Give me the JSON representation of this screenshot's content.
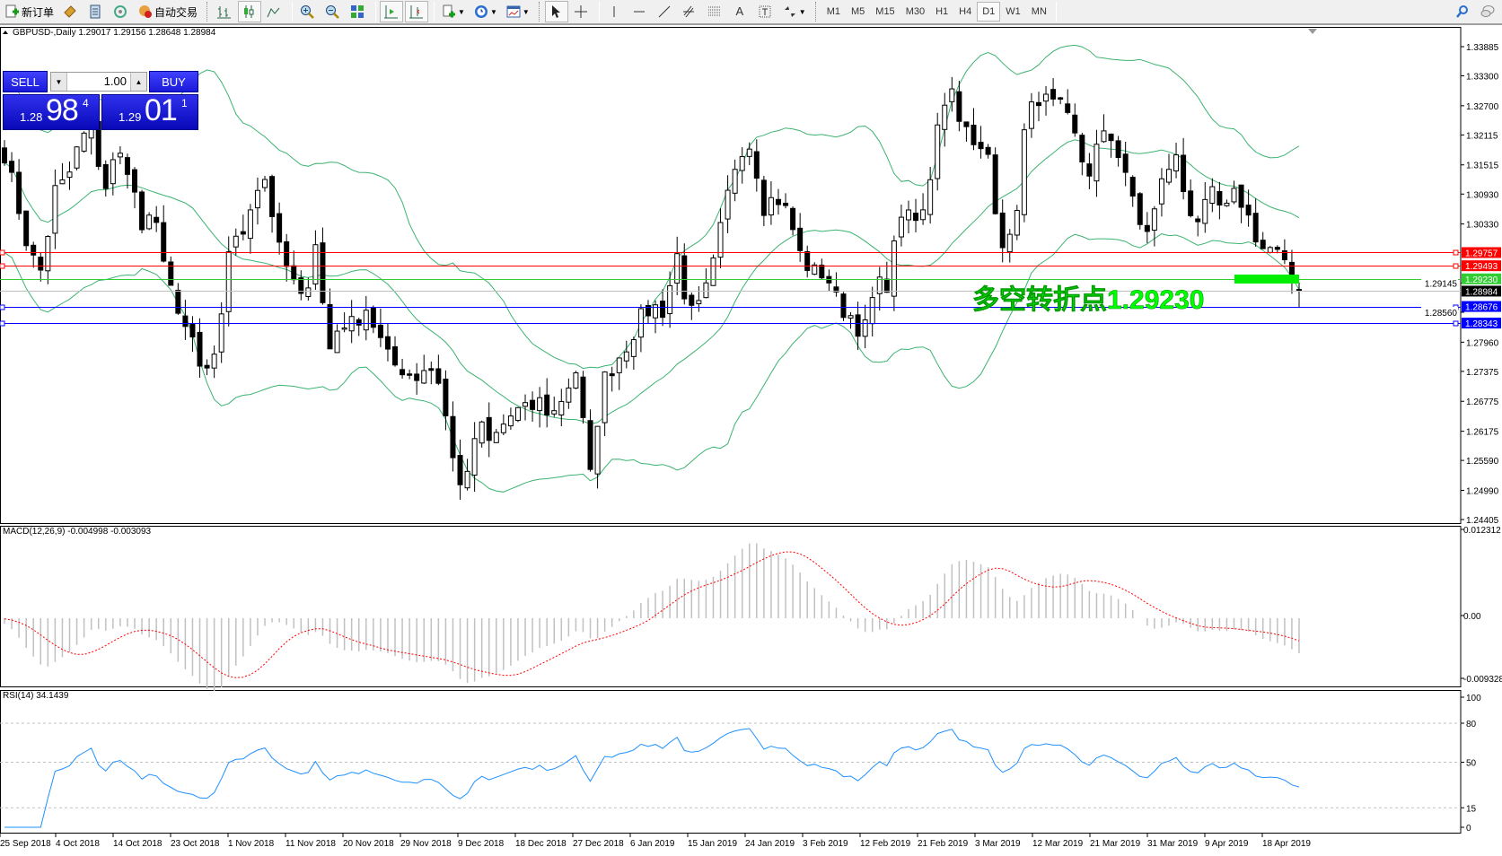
{
  "toolbar": {
    "new_order": "新订单",
    "auto_trading": "自动交易",
    "icons": [
      "new-order-icon",
      "experts-icon",
      "market-watch-icon",
      "signals-icon",
      "auto-trading-icon",
      "bar-chart-icon",
      "candlestick-icon",
      "line-chart-icon",
      "zoom-in-icon",
      "zoom-out-icon",
      "tile-windows-icon",
      "autoscroll-icon",
      "chart-shift-icon",
      "indicators-icon",
      "periods-icon",
      "templates-icon",
      "cursor-icon",
      "crosshair-icon",
      "vertical-line-icon",
      "horizontal-line-icon",
      "trendline-icon",
      "fibonacci-icon",
      "fibo-levels-icon",
      "text-icon",
      "text-label-icon",
      "arrows-icon",
      "search-icon",
      "chat-icon"
    ],
    "timeframes": [
      "M1",
      "M5",
      "M15",
      "M30",
      "H1",
      "H4",
      "D1",
      "W1",
      "MN"
    ],
    "active_timeframe": "D1"
  },
  "chart": {
    "header": "GBPUSD-,Daily  1.29017 1.29156 1.28648 1.28984",
    "symbol": "GBPUSD-",
    "period": "Daily",
    "last_bar": {
      "open": 1.29017,
      "high": 1.29156,
      "low": 1.28648,
      "close": 1.28984
    },
    "one_click": {
      "sell_label": "SELL",
      "buy_label": "BUY",
      "lot": "1.00",
      "bid": {
        "small": "1.28",
        "big": "98",
        "exp": "4"
      },
      "ask": {
        "small": "1.29",
        "big": "01",
        "exp": "1"
      }
    },
    "price_ticks": [
      "1.33885",
      "1.33300",
      "1.32700",
      "1.32115",
      "1.31515",
      "1.30930",
      "1.30330",
      "1.29145",
      "1.28560",
      "1.27960",
      "1.27375",
      "1.26775",
      "1.26175",
      "1.25590",
      "1.24990",
      "1.24405"
    ],
    "levels": [
      {
        "price": "1.29757",
        "color": "#ff0000",
        "tag": true
      },
      {
        "price": "1.29493",
        "color": "#ff0000",
        "tag": true
      },
      {
        "price": "1.29230",
        "color": "#32cd32",
        "tag": false
      },
      {
        "price": "1.28984",
        "color": "#000000",
        "line_color": "#c0c0c0",
        "tag": false
      },
      {
        "price": "1.28676",
        "color": "#0000ff",
        "tag": true
      },
      {
        "price": "1.28343",
        "color": "#0000ff",
        "tag": true
      }
    ],
    "annotation": "多空转折点1.29230",
    "annotation_color": "#00ff00",
    "bull_color": "#ffffff",
    "bear_color": "#000000",
    "band_color": "#3cb371",
    "closes_sampled": [
      1.31755,
      1.30795,
      1.2974,
      1.29356,
      1.30987,
      1.31179,
      1.31947,
      1.32331,
      1.30987,
      1.31755,
      1.31467,
      1.3022,
      1.30412,
      1.29548,
      1.28301,
      1.28109,
      1.27149,
      1.27629,
      1.29836,
      1.30028,
      1.30987,
      1.31275,
      1.29836,
      1.2926,
      1.28684,
      1.30028,
      1.27725,
      1.28397,
      1.28301,
      1.28684,
      1.28109,
      1.27533,
      1.27437,
      1.27245,
      1.27533,
      1.27149,
      1.25614,
      1.24942,
      1.26382,
      1.25902,
      1.26286,
      1.26573,
      1.26573,
      1.26765,
      1.26478,
      1.26957,
      1.27437,
      1.25134,
      1.27149,
      1.27533,
      1.27917,
      1.28397,
      1.28684,
      1.28589,
      1.2974,
      1.28493,
      1.28684,
      1.29548,
      1.30795,
      1.31851,
      1.31947,
      1.30699,
      1.30891,
      1.30507,
      1.29644,
      1.29356,
      1.29356,
      1.28684,
      1.28493,
      1.28109,
      1.29068,
      1.29164,
      1.30603,
      1.30316,
      1.30603,
      1.32523,
      1.33098,
      1.32331,
      1.31755,
      1.31755,
      1.30028,
      1.29932,
      1.32331,
      1.32906,
      1.32714,
      1.32618,
      1.32043,
      1.31275,
      1.32043,
      1.32043,
      1.31467,
      1.30316,
      1.3022,
      1.31179,
      1.31755,
      1.30699,
      1.30412,
      1.30891,
      1.30507,
      1.30987,
      1.30412,
      1.29836,
      1.29836,
      1.29356,
      1.28984
    ],
    "macd": {
      "label": "MACD(12,26,9) -0.004998 -0.003093",
      "ticks": [
        "0.012312",
        "0.00",
        "-0.009328"
      ],
      "hist_color": "#c0c0c0",
      "signal_color": "#ff0000"
    },
    "rsi": {
      "label": "RSI(14) 34.1439",
      "ticks": [
        "100",
        "80",
        "50",
        "15",
        "0"
      ],
      "levels": [
        80,
        50,
        15
      ],
      "color": "#1e90ff"
    },
    "dates": [
      "25 Sep 2018",
      "4 Oct 2018",
      "14 Oct 2018",
      "23 Oct 2018",
      "1 Nov 2018",
      "11 Nov 2018",
      "20 Nov 2018",
      "29 Nov 2018",
      "9 Dec 2018",
      "18 Dec 2018",
      "27 Dec 2018",
      "6 Jan 2019",
      "15 Jan 2019",
      "24 Jan 2019",
      "3 Feb 2019",
      "12 Feb 2019",
      "21 Feb 2019",
      "3 Mar 2019",
      "12 Mar 2019",
      "21 Mar 2019",
      "31 Mar 2019",
      "9 Apr 2019",
      "18 Apr 2019"
    ]
  }
}
